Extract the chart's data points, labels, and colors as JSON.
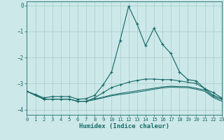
{
  "xlabel": "Humidex (Indice chaleur)",
  "xlim": [
    0,
    23
  ],
  "ylim": [
    -4.2,
    0.15
  ],
  "yticks": [
    0,
    -1,
    -2,
    -3,
    -4
  ],
  "xticks": [
    0,
    1,
    2,
    3,
    4,
    5,
    6,
    7,
    8,
    9,
    10,
    11,
    12,
    13,
    14,
    15,
    16,
    17,
    18,
    19,
    20,
    21,
    22,
    23
  ],
  "bg_color": "#cde8e8",
  "grid_color": "#a8cccc",
  "line_color": "#1a6b6b",
  "line1_y": [
    -3.3,
    -3.42,
    -3.55,
    -3.5,
    -3.5,
    -3.5,
    -3.6,
    -3.58,
    -3.45,
    -3.05,
    -2.55,
    -1.35,
    -0.04,
    -0.72,
    -1.55,
    -0.88,
    -1.5,
    -1.85,
    -2.55,
    -2.85,
    -2.9,
    -3.2,
    -3.35,
    -3.55
  ],
  "line2_y": [
    -3.3,
    -3.45,
    -3.6,
    -3.6,
    -3.6,
    -3.6,
    -3.68,
    -3.68,
    -3.55,
    -3.35,
    -3.15,
    -3.05,
    -2.95,
    -2.88,
    -2.83,
    -2.83,
    -2.85,
    -2.85,
    -2.9,
    -2.95,
    -3.0,
    -3.2,
    -3.45,
    -3.58
  ],
  "line3_y": [
    -3.3,
    -3.45,
    -3.6,
    -3.6,
    -3.6,
    -3.6,
    -3.68,
    -3.68,
    -3.6,
    -3.52,
    -3.44,
    -3.38,
    -3.33,
    -3.28,
    -3.23,
    -3.18,
    -3.13,
    -3.1,
    -3.12,
    -3.12,
    -3.18,
    -3.25,
    -3.5,
    -3.62
  ],
  "line4_y": [
    -3.3,
    -3.45,
    -3.6,
    -3.6,
    -3.6,
    -3.6,
    -3.68,
    -3.68,
    -3.62,
    -3.55,
    -3.47,
    -3.42,
    -3.38,
    -3.33,
    -3.28,
    -3.22,
    -3.17,
    -3.14,
    -3.15,
    -3.16,
    -3.22,
    -3.3,
    -3.54,
    -3.68
  ]
}
